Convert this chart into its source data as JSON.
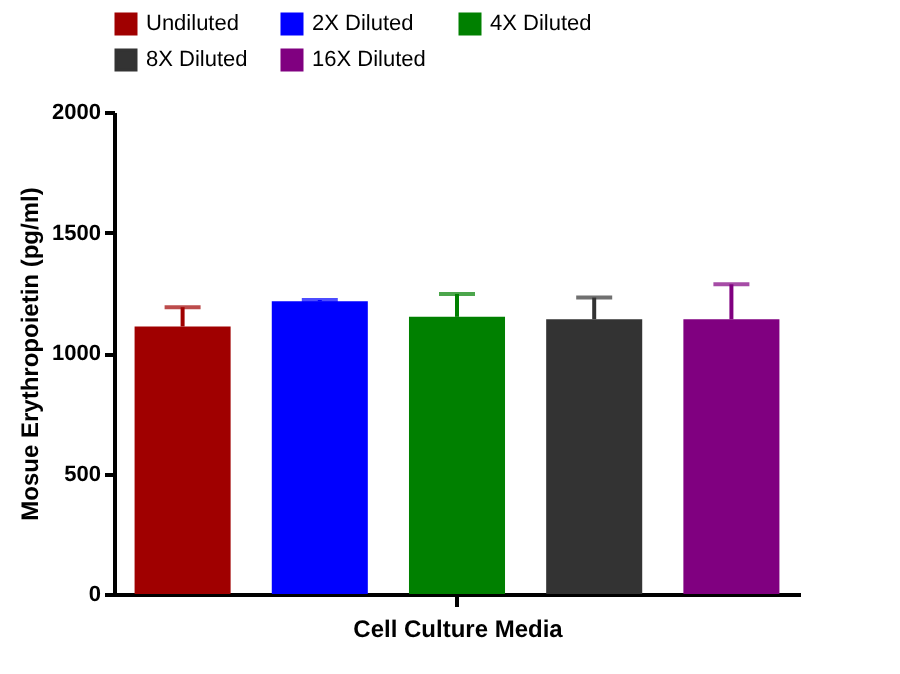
{
  "chart_data": {
    "type": "bar",
    "ylabel": "Mosue Erythropoietin (pg/ml)",
    "xlabel": "Cell Culture Media",
    "categories": [
      null
    ],
    "series": [
      {
        "name": "Undiluted",
        "color": "#a00000",
        "values": [
          1110
        ],
        "errors": [
          [
            1110,
            1190
          ]
        ]
      },
      {
        "name": "2X Diluted",
        "color": "#0000ff",
        "values": [
          1215
        ],
        "errors": [
          [
            1215,
            1220
          ]
        ]
      },
      {
        "name": "4X Diluted",
        "color": "#008000",
        "values": [
          1150
        ],
        "errors": [
          [
            1150,
            1245
          ]
        ]
      },
      {
        "name": "8X Diluted",
        "color": "#333333",
        "values": [
          1140
        ],
        "errors": [
          [
            1140,
            1230
          ]
        ]
      },
      {
        "name": "16X Diluted",
        "color": "#800080",
        "values": [
          1140
        ],
        "errors": [
          [
            1140,
            1285
          ]
        ]
      }
    ],
    "ylim": [
      0,
      2000
    ],
    "yticks": [
      0,
      500,
      1000,
      1500,
      2000
    ],
    "grid": false,
    "legend": "top"
  }
}
